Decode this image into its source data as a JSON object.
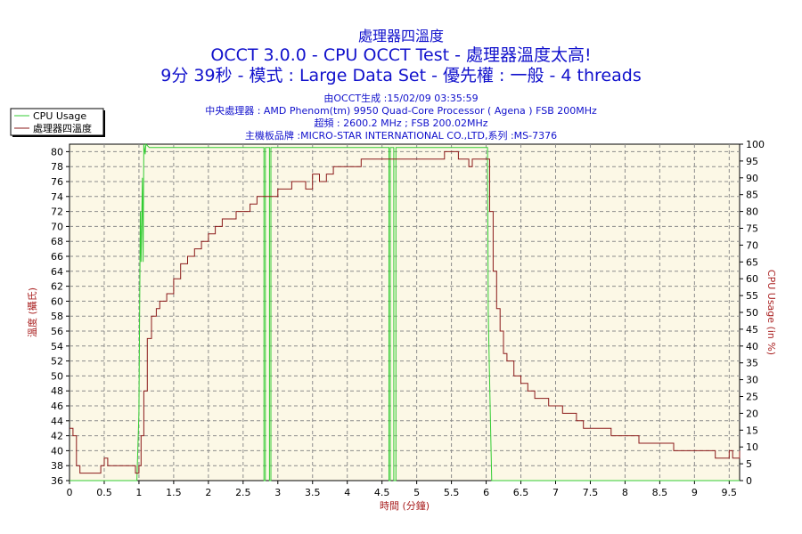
{
  "header": {
    "title": "處理器四溫度",
    "line2": "OCCT 3.0.0 - CPU OCCT Test - 處理器溫度太高!",
    "line3": "9分 39秒 - 模式 : Large Data Set - 優先權 : 一般 - 4 threads",
    "info1": "由OCCT生成 :15/02/09 03:35:59",
    "info2": "中央處理器 : AMD Phenom(tm) 9950 Quad-Core Processor ( Agena ) FSB 200MHz",
    "info3": "超頻 : 2600.2 MHz ; FSB 200.02MHz",
    "info4": "主機板品牌 :MICRO-STAR INTERNATIONAL CO.,LTD,系列 :MS-7376"
  },
  "colors": {
    "background": "#ffffff",
    "plot_background": "#fcf8e6",
    "temperature": "#8b1a1a",
    "cpu_usage": "#33cc33",
    "title": "#1111cc",
    "axis_title": "#aa2222"
  },
  "chart_data": {
    "type": "line",
    "xlabel": "時間 (分鐘)",
    "ylabel_left": "溫度 (攝氏)",
    "ylabel_right": "CPU Usage (in %)",
    "xlim": [
      0,
      9.65
    ],
    "ylim_left": [
      36,
      81
    ],
    "ylim_right": [
      0,
      100
    ],
    "x_ticks": [
      "0",
      "0.5",
      "1",
      "1.5",
      "2",
      "2.5",
      "3",
      "3.5",
      "4",
      "4.5",
      "5",
      "5.5",
      "6",
      "6.5",
      "7",
      "7.5",
      "8",
      "8.5",
      "9",
      "9.5"
    ],
    "y_left_ticks": [
      "36",
      "38",
      "40",
      "42",
      "44",
      "46",
      "48",
      "50",
      "52",
      "54",
      "56",
      "58",
      "60",
      "62",
      "64",
      "66",
      "68",
      "70",
      "72",
      "74",
      "76",
      "78",
      "80"
    ],
    "y_right_ticks": [
      "0",
      "5",
      "10",
      "15",
      "20",
      "25",
      "30",
      "35",
      "40",
      "45",
      "50",
      "55",
      "60",
      "65",
      "70",
      "75",
      "80",
      "85",
      "90",
      "95",
      "100"
    ],
    "grid": true,
    "legend_position": "top-left",
    "series": [
      {
        "name": "CPU Usage",
        "axis": "right",
        "x": [
          0,
          0.97,
          1.0,
          1.02,
          1.03,
          1.05,
          1.06,
          1.07,
          1.09,
          1.1,
          1.15,
          2.8,
          2.8,
          2.82,
          2.82,
          2.88,
          2.88,
          2.9,
          2.9,
          4.6,
          4.6,
          4.62,
          4.62,
          4.67,
          4.67,
          4.7,
          4.7,
          6.02,
          6.03,
          6.06,
          6.08,
          9.65
        ],
        "values": [
          0,
          0,
          20,
          80,
          65,
          90,
          65,
          100,
          97,
          100,
          99,
          99,
          0,
          0,
          99,
          99,
          0,
          0,
          99,
          99,
          0,
          0,
          99,
          99,
          0,
          0,
          99,
          99,
          50,
          20,
          0,
          0
        ]
      },
      {
        "name": "處理器四溫度",
        "axis": "left",
        "x": [
          0,
          0.05,
          0.1,
          0.15,
          0.3,
          0.45,
          0.5,
          0.55,
          0.8,
          0.95,
          1.0,
          1.03,
          1.07,
          1.12,
          1.18,
          1.25,
          1.3,
          1.4,
          1.5,
          1.6,
          1.7,
          1.8,
          1.9,
          2.0,
          2.1,
          2.2,
          2.3,
          2.4,
          2.5,
          2.6,
          2.7,
          2.8,
          3.0,
          3.1,
          3.2,
          3.3,
          3.4,
          3.5,
          3.6,
          3.7,
          3.8,
          4.0,
          4.1,
          4.2,
          4.3,
          4.4,
          4.6,
          4.7,
          5.0,
          5.2,
          5.3,
          5.4,
          5.5,
          5.6,
          5.7,
          5.75,
          5.8,
          5.9,
          6.0,
          6.05,
          6.1,
          6.15,
          6.2,
          6.25,
          6.3,
          6.4,
          6.5,
          6.6,
          6.7,
          6.8,
          6.9,
          7.0,
          7.1,
          7.3,
          7.4,
          7.6,
          7.8,
          8.0,
          8.2,
          8.4,
          8.5,
          8.7,
          8.8,
          9.0,
          9.1,
          9.3,
          9.4,
          9.5,
          9.55,
          9.6,
          9.65
        ],
        "values": [
          43,
          42,
          38,
          37,
          37,
          38,
          39,
          38,
          38,
          37,
          38,
          42,
          48,
          55,
          58,
          59,
          60,
          61,
          63,
          65,
          66,
          67,
          68,
          69,
          70,
          71,
          71,
          72,
          72,
          73,
          74,
          74,
          75,
          75,
          76,
          76,
          75,
          77,
          76,
          77,
          78,
          78,
          78,
          79,
          79,
          79,
          79,
          79,
          79,
          79,
          79,
          80,
          80,
          79,
          79,
          78,
          79,
          79,
          79,
          72,
          64,
          59,
          56,
          53,
          52,
          50,
          49,
          48,
          47,
          47,
          46,
          46,
          45,
          44,
          43,
          43,
          42,
          42,
          41,
          41,
          41,
          40,
          40,
          40,
          40,
          39,
          39,
          40,
          39,
          39,
          40
        ]
      }
    ]
  }
}
